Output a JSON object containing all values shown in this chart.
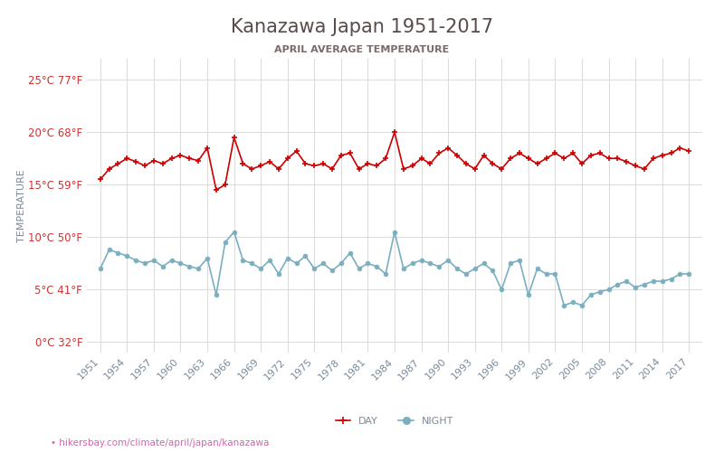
{
  "title": "Kanazawa Japan 1951-2017",
  "subtitle": "APRIL AVERAGE TEMPERATURE",
  "ylabel": "TEMPERATURE",
  "xlabel_url": "hikersbay.com/climate/april/japan/kanazawa",
  "legend_night": "NIGHT",
  "legend_day": "DAY",
  "years": [
    1951,
    1952,
    1953,
    1954,
    1955,
    1956,
    1957,
    1958,
    1959,
    1960,
    1961,
    1962,
    1963,
    1964,
    1965,
    1966,
    1967,
    1968,
    1969,
    1970,
    1971,
    1972,
    1973,
    1974,
    1975,
    1976,
    1977,
    1978,
    1979,
    1980,
    1981,
    1982,
    1983,
    1984,
    1985,
    1986,
    1987,
    1988,
    1989,
    1990,
    1991,
    1992,
    1993,
    1994,
    1995,
    1996,
    1997,
    1998,
    1999,
    2000,
    2001,
    2002,
    2003,
    2004,
    2005,
    2006,
    2007,
    2008,
    2009,
    2010,
    2011,
    2012,
    2013,
    2014,
    2015,
    2016,
    2017
  ],
  "day_temps": [
    15.5,
    16.5,
    17.0,
    17.5,
    17.2,
    16.8,
    17.3,
    17.0,
    17.5,
    17.8,
    17.5,
    17.3,
    18.5,
    14.5,
    15.0,
    19.5,
    17.0,
    16.5,
    16.8,
    17.2,
    16.5,
    17.5,
    18.2,
    17.0,
    16.8,
    17.0,
    16.5,
    17.8,
    18.0,
    16.5,
    17.0,
    16.8,
    17.5,
    20.0,
    16.5,
    16.8,
    17.5,
    17.0,
    18.0,
    18.5,
    17.8,
    17.0,
    16.5,
    17.8,
    17.0,
    16.5,
    17.5,
    18.0,
    17.5,
    17.0,
    17.5,
    18.0,
    17.5,
    18.0,
    17.0,
    17.8,
    18.0,
    17.5,
    17.5,
    17.2,
    16.8,
    16.5,
    17.5,
    17.8,
    18.0,
    18.5,
    18.2
  ],
  "night_temps": [
    7.0,
    8.8,
    8.5,
    8.2,
    7.8,
    7.5,
    7.8,
    7.2,
    7.8,
    7.5,
    7.2,
    7.0,
    8.0,
    4.5,
    9.5,
    10.5,
    7.8,
    7.5,
    7.0,
    7.8,
    6.5,
    8.0,
    7.5,
    8.2,
    7.0,
    7.5,
    6.8,
    7.5,
    8.5,
    7.0,
    7.5,
    7.2,
    6.5,
    10.5,
    7.0,
    7.5,
    7.8,
    7.5,
    7.2,
    7.8,
    7.0,
    6.5,
    7.0,
    7.5,
    6.8,
    5.0,
    7.5,
    7.8,
    4.5,
    7.0,
    6.5,
    6.5,
    3.5,
    3.8,
    3.5,
    4.5,
    4.8,
    5.0,
    5.5,
    5.8,
    5.2,
    5.5,
    5.8,
    5.8,
    6.0,
    6.5,
    6.5
  ],
  "yticks_c": [
    0,
    5,
    10,
    15,
    20,
    25
  ],
  "yticks_f": [
    32,
    41,
    50,
    59,
    68,
    77
  ],
  "ylim": [
    -1,
    27
  ],
  "day_color": "#cc0000",
  "night_color": "#7aafc0",
  "title_color": "#5a4a4a",
  "subtitle_color": "#7a6a6a",
  "ylabel_color": "#7a8a9a",
  "ytick_color_c": "#cc3333",
  "xtick_color": "#7a8a9a",
  "grid_color": "#dddddd",
  "bg_color": "#ffffff",
  "url_color": "#cc66aa",
  "marker_size": 4
}
